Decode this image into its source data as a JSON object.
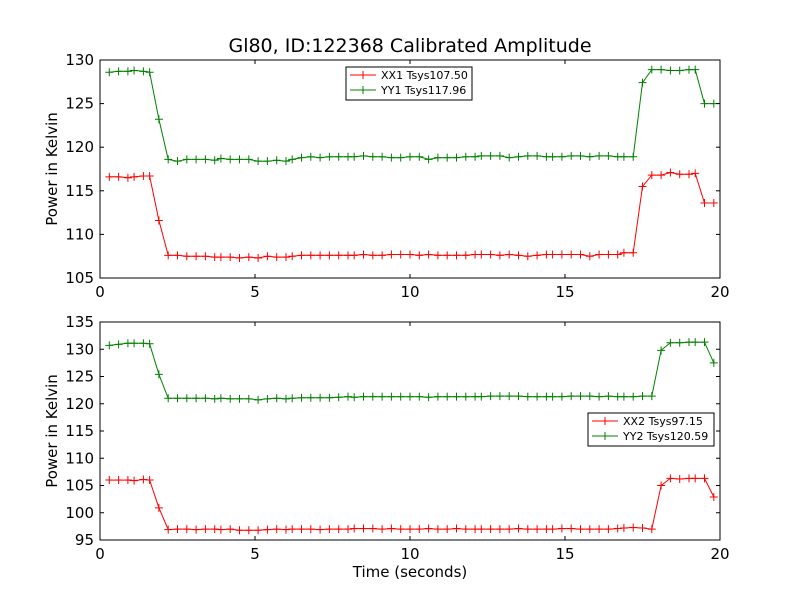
{
  "chart_data": [
    {
      "type": "line",
      "title": "Gl80, ID:122368 Calibrated Amplitude",
      "xlabel": "",
      "ylabel": "Power in Kelvin",
      "xlim": [
        0,
        20
      ],
      "ylim": [
        105,
        130
      ],
      "xticks": [
        0,
        5,
        10,
        15,
        20
      ],
      "yticks": [
        105,
        110,
        115,
        120,
        125,
        130
      ],
      "legend_position": "top-center",
      "grid": false,
      "x": [
        0.3,
        0.6,
        0.9,
        1.1,
        1.4,
        1.6,
        1.9,
        2.2,
        2.5,
        2.8,
        3.1,
        3.4,
        3.7,
        3.9,
        4.2,
        4.5,
        4.8,
        5.1,
        5.4,
        5.7,
        6.0,
        6.2,
        6.5,
        6.8,
        7.1,
        7.4,
        7.7,
        8.0,
        8.2,
        8.5,
        8.8,
        9.1,
        9.4,
        9.7,
        10.0,
        10.3,
        10.6,
        10.9,
        11.2,
        11.5,
        11.8,
        12.1,
        12.3,
        12.6,
        12.9,
        13.2,
        13.5,
        13.8,
        14.1,
        14.4,
        14.6,
        14.9,
        15.2,
        15.5,
        15.8,
        16.1,
        16.4,
        16.7,
        16.9,
        17.2,
        17.5,
        17.8,
        18.1,
        18.4,
        18.7,
        19.0,
        19.2,
        19.5,
        19.8
      ],
      "series": [
        {
          "name": "XX1 Tsys107.50",
          "color": "#ff0000",
          "values": [
            116.6,
            116.6,
            116.5,
            116.6,
            116.7,
            116.7,
            111.6,
            107.6,
            107.6,
            107.5,
            107.5,
            107.5,
            107.4,
            107.4,
            107.4,
            107.3,
            107.4,
            107.3,
            107.5,
            107.4,
            107.4,
            107.5,
            107.6,
            107.6,
            107.6,
            107.6,
            107.6,
            107.6,
            107.6,
            107.7,
            107.6,
            107.6,
            107.7,
            107.7,
            107.7,
            107.6,
            107.7,
            107.6,
            107.6,
            107.6,
            107.6,
            107.7,
            107.7,
            107.7,
            107.6,
            107.7,
            107.6,
            107.5,
            107.6,
            107.7,
            107.7,
            107.7,
            107.7,
            107.7,
            107.5,
            107.7,
            107.7,
            107.7,
            107.9,
            107.9,
            115.5,
            116.8,
            116.8,
            117.1,
            116.9,
            116.9,
            117.0,
            113.6,
            113.6
          ]
        },
        {
          "name": "YY1 Tsys117.96",
          "color": "#008000",
          "values": [
            128.6,
            128.7,
            128.7,
            128.8,
            128.7,
            128.6,
            123.2,
            118.6,
            118.4,
            118.6,
            118.6,
            118.6,
            118.5,
            118.7,
            118.6,
            118.6,
            118.6,
            118.4,
            118.4,
            118.5,
            118.4,
            118.6,
            118.8,
            118.9,
            118.8,
            118.9,
            118.9,
            118.9,
            118.9,
            119.0,
            118.9,
            118.9,
            118.8,
            118.8,
            118.9,
            118.9,
            118.6,
            118.8,
            118.8,
            118.8,
            118.9,
            118.9,
            119.0,
            119.0,
            119.0,
            118.8,
            118.9,
            119.0,
            119.0,
            118.9,
            118.9,
            118.9,
            119.0,
            119.0,
            118.9,
            119.0,
            119.0,
            118.9,
            118.9,
            118.9,
            127.4,
            128.9,
            128.9,
            128.8,
            128.8,
            128.9,
            128.9,
            125.0,
            125.0
          ]
        }
      ]
    },
    {
      "type": "line",
      "title": "",
      "xlabel": "Time (seconds)",
      "ylabel": "Power in Kelvin",
      "xlim": [
        0,
        20
      ],
      "ylim": [
        95,
        135
      ],
      "xticks": [
        0,
        5,
        10,
        15,
        20
      ],
      "yticks": [
        95,
        100,
        105,
        110,
        115,
        120,
        125,
        130,
        135
      ],
      "legend_position": "center-right",
      "grid": false,
      "x": [
        0.3,
        0.6,
        0.9,
        1.1,
        1.4,
        1.6,
        1.9,
        2.2,
        2.5,
        2.8,
        3.1,
        3.4,
        3.7,
        3.9,
        4.2,
        4.5,
        4.8,
        5.1,
        5.4,
        5.7,
        6.0,
        6.2,
        6.5,
        6.8,
        7.1,
        7.4,
        7.7,
        8.0,
        8.2,
        8.5,
        8.8,
        9.1,
        9.4,
        9.7,
        10.0,
        10.3,
        10.6,
        10.9,
        11.2,
        11.5,
        11.8,
        12.1,
        12.3,
        12.6,
        12.9,
        13.2,
        13.5,
        13.8,
        14.1,
        14.4,
        14.6,
        14.9,
        15.2,
        15.5,
        15.8,
        16.1,
        16.4,
        16.7,
        16.9,
        17.2,
        17.5,
        17.8,
        18.1,
        18.4,
        18.7,
        19.0,
        19.2,
        19.5,
        19.8
      ],
      "series": [
        {
          "name": "XX2 Tsys97.15",
          "color": "#ff0000",
          "values": [
            106.0,
            106.0,
            106.0,
            105.9,
            106.1,
            106.0,
            100.9,
            96.9,
            97.0,
            97.0,
            96.9,
            97.0,
            97.0,
            96.9,
            97.0,
            96.8,
            96.8,
            96.8,
            96.9,
            97.0,
            96.9,
            97.0,
            97.0,
            97.0,
            96.9,
            97.0,
            97.0,
            97.0,
            97.1,
            97.1,
            97.1,
            97.0,
            97.1,
            97.0,
            97.0,
            97.0,
            97.1,
            97.0,
            97.0,
            97.1,
            97.0,
            97.0,
            97.0,
            97.0,
            97.0,
            97.0,
            97.1,
            97.0,
            97.0,
            97.0,
            97.0,
            97.1,
            97.1,
            97.0,
            97.0,
            97.0,
            97.0,
            97.1,
            97.2,
            97.3,
            97.2,
            97.0,
            105.0,
            106.3,
            106.2,
            106.3,
            106.3,
            106.3,
            102.9
          ]
        },
        {
          "name": "YY2 Tsys120.59",
          "color": "#008000",
          "values": [
            130.7,
            130.9,
            131.1,
            131.1,
            131.1,
            131.0,
            125.4,
            121.0,
            121.0,
            121.0,
            121.0,
            121.0,
            120.9,
            121.0,
            120.9,
            120.9,
            120.9,
            120.7,
            120.9,
            121.0,
            120.9,
            121.0,
            121.1,
            121.1,
            121.1,
            121.1,
            121.2,
            121.3,
            121.2,
            121.3,
            121.3,
            121.3,
            121.3,
            121.3,
            121.3,
            121.3,
            121.2,
            121.3,
            121.3,
            121.3,
            121.3,
            121.3,
            121.3,
            121.4,
            121.4,
            121.4,
            121.4,
            121.3,
            121.3,
            121.3,
            121.3,
            121.3,
            121.4,
            121.4,
            121.4,
            121.3,
            121.4,
            121.3,
            121.3,
            121.3,
            121.4,
            121.4,
            129.8,
            131.2,
            131.2,
            131.3,
            131.3,
            131.3,
            127.5
          ]
        }
      ]
    }
  ]
}
